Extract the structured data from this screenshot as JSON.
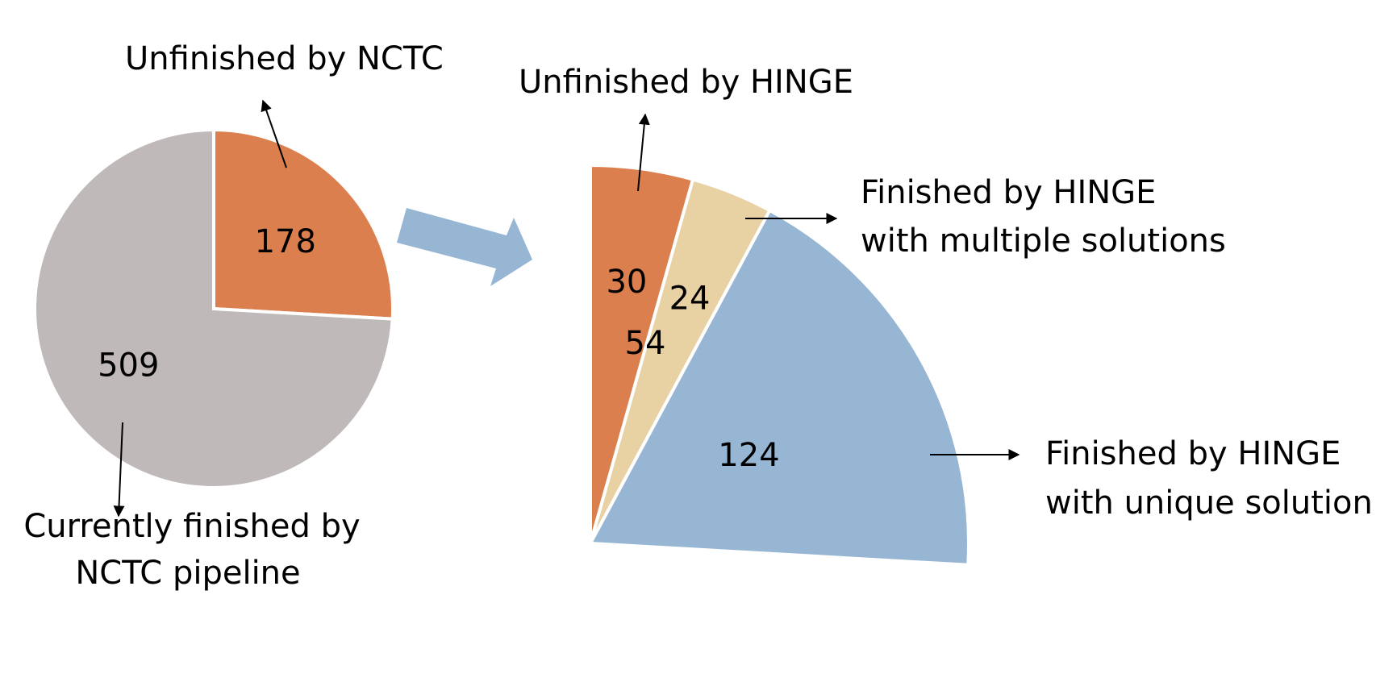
{
  "chart_data": [
    {
      "type": "pie",
      "slices": [
        {
          "label": "Unfinished by NCTC",
          "value": 178,
          "color": "#DC7F4E"
        },
        {
          "label": "Currently finished by NCTC pipeline",
          "value": 509,
          "color": "#BFB9B9"
        }
      ],
      "callouts": {
        "unfinished": [
          "Unfinished by NCTC"
        ],
        "finished": [
          "Currently finished by",
          "NCTC pipeline"
        ]
      }
    },
    {
      "type": "pie",
      "partial_of": "Unfinished by NCTC",
      "slices": [
        {
          "label": "Unfinished by HINGE",
          "value": 30,
          "color": "#DC7F4E"
        },
        {
          "label": "Finished by HINGE with multiple solutions",
          "value": 24,
          "color": "#E8D1A3"
        },
        {
          "label": "Finished by HINGE with unique solution",
          "value": 124,
          "color": "#97B6D3"
        }
      ],
      "extra_label": "54",
      "callouts": {
        "unfinished": [
          "Unfinished by HINGE"
        ],
        "multiple": [
          "Finished by HINGE",
          "with multiple solutions"
        ],
        "unique": [
          "Finished by HINGE",
          "with unique solution"
        ]
      }
    }
  ],
  "colors": {
    "arrow": "#97B6D3",
    "text": "#000000"
  }
}
